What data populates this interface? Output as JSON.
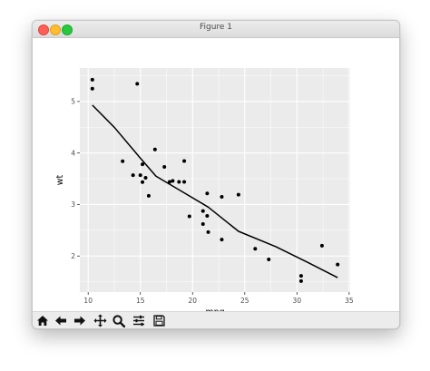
{
  "window": {
    "title": "Figure 1"
  },
  "toolbar": {
    "buttons": [
      {
        "name": "home-icon"
      },
      {
        "name": "back-arrow-icon"
      },
      {
        "name": "forward-arrow-icon"
      },
      {
        "name": "pan-icon"
      },
      {
        "name": "zoom-icon"
      },
      {
        "name": "subplots-config-icon"
      },
      {
        "name": "save-icon"
      }
    ]
  },
  "colors": {
    "panel_background": "#ebebeb",
    "gridline": "#ffffff",
    "points": "#000000",
    "line": "#000000",
    "tick_text": "#4d4d4d"
  },
  "chart_data": {
    "type": "scatter",
    "title": "",
    "xlabel": "mpg",
    "ylabel": "wt",
    "xlim": [
      9.2,
      35.1
    ],
    "ylim": [
      1.3,
      5.65
    ],
    "xticks": [
      10,
      15,
      20,
      25,
      30,
      35
    ],
    "yticks": [
      2,
      3,
      4,
      5
    ],
    "xtick_labels": [
      "10",
      "15",
      "20",
      "25",
      "30",
      "35"
    ],
    "ytick_labels": [
      "2",
      "3",
      "4",
      "5"
    ],
    "grid": true,
    "legend": "none",
    "points": [
      {
        "x": 21.0,
        "y": 2.62
      },
      {
        "x": 21.0,
        "y": 2.875
      },
      {
        "x": 22.8,
        "y": 2.32
      },
      {
        "x": 21.4,
        "y": 3.215
      },
      {
        "x": 18.7,
        "y": 3.44
      },
      {
        "x": 18.1,
        "y": 3.46
      },
      {
        "x": 14.3,
        "y": 3.57
      },
      {
        "x": 24.4,
        "y": 3.19
      },
      {
        "x": 22.8,
        "y": 3.15
      },
      {
        "x": 19.2,
        "y": 3.44
      },
      {
        "x": 17.8,
        "y": 3.44
      },
      {
        "x": 16.4,
        "y": 4.07
      },
      {
        "x": 17.3,
        "y": 3.73
      },
      {
        "x": 15.2,
        "y": 3.78
      },
      {
        "x": 10.4,
        "y": 5.25
      },
      {
        "x": 10.4,
        "y": 5.424
      },
      {
        "x": 14.7,
        "y": 5.345
      },
      {
        "x": 32.4,
        "y": 2.2
      },
      {
        "x": 30.4,
        "y": 1.615
      },
      {
        "x": 33.9,
        "y": 1.835
      },
      {
        "x": 21.5,
        "y": 2.465
      },
      {
        "x": 15.5,
        "y": 3.52
      },
      {
        "x": 15.2,
        "y": 3.435
      },
      {
        "x": 13.3,
        "y": 3.84
      },
      {
        "x": 19.2,
        "y": 3.845
      },
      {
        "x": 27.3,
        "y": 1.935
      },
      {
        "x": 26.0,
        "y": 2.14
      },
      {
        "x": 30.4,
        "y": 1.513
      },
      {
        "x": 15.8,
        "y": 3.17
      },
      {
        "x": 19.7,
        "y": 2.77
      },
      {
        "x": 15.0,
        "y": 3.57
      },
      {
        "x": 21.4,
        "y": 2.78
      }
    ],
    "line": {
      "x": [
        10.4,
        12.5,
        15.0,
        16.5,
        19.0,
        21.5,
        24.4,
        28.0,
        31.0,
        33.9
      ],
      "y": [
        4.93,
        4.5,
        3.9,
        3.55,
        3.25,
        2.95,
        2.48,
        2.18,
        1.88,
        1.58
      ]
    }
  }
}
